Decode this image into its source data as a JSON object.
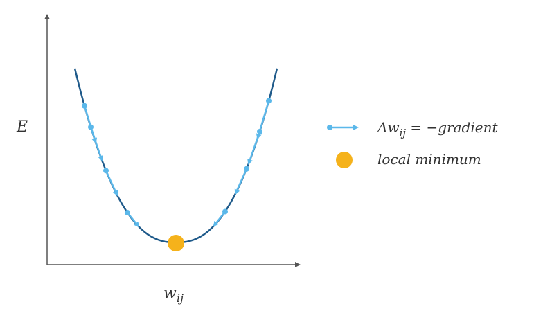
{
  "axes": {
    "y_label": "E",
    "x_label_base": "w",
    "x_label_sub": "ij"
  },
  "legend": {
    "arrow_entry": {
      "prefix": "Δw",
      "sub": "ij",
      "suffix": " = −gradient"
    },
    "dot_entry": {
      "label": "local minimum"
    }
  },
  "colors": {
    "axis": "#555555",
    "curve": "#1f5a8a",
    "arrow": "#5bb8ea",
    "minimum": "#f5b21b",
    "text": "#333333"
  }
}
